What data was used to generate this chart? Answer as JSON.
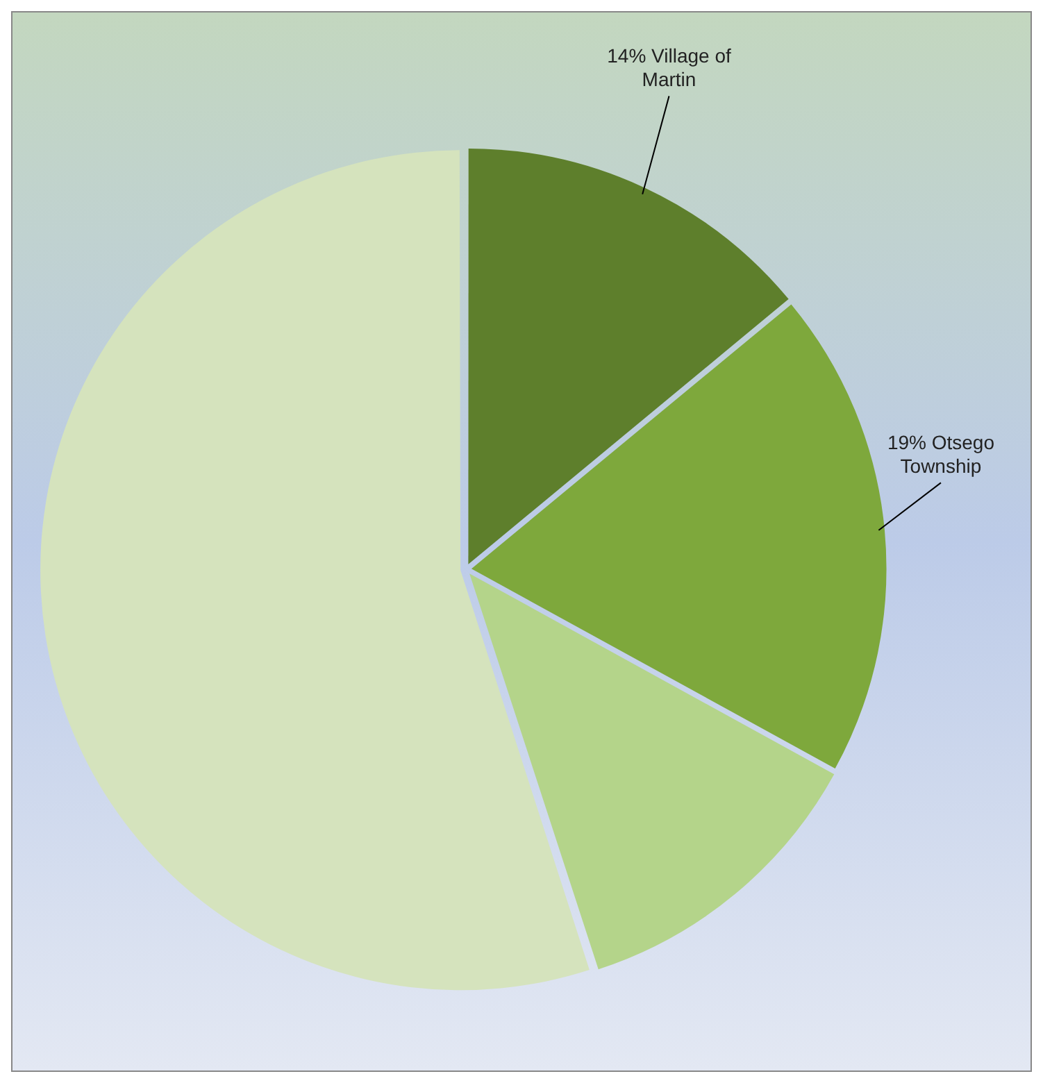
{
  "chart_data": {
    "type": "pie",
    "categories": [
      "Village of Martin",
      "Otsego Township",
      null,
      null
    ],
    "values": [
      14,
      19,
      12,
      55
    ],
    "value_labels": [
      "14%",
      "19%",
      null,
      null
    ],
    "colors": [
      "#5e7f2c",
      "#7ea83c",
      "#b4d48a",
      "#d5e3bd"
    ],
    "legend": false
  }
}
